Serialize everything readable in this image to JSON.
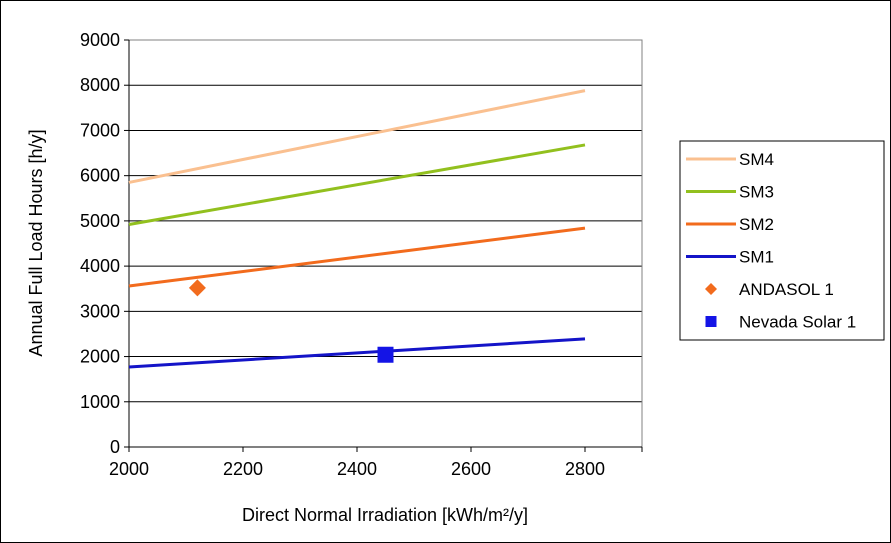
{
  "chart_data": {
    "type": "line",
    "title": "",
    "xlabel": "Direct Normal Irradiation [kWh/m²/y]",
    "ylabel": "Annual Full Load Hours [h/y]",
    "xlim": [
      2000,
      2900
    ],
    "ylim": [
      0,
      9000
    ],
    "x_ticks": [
      "2000",
      "2200",
      "2400",
      "2600",
      "2800"
    ],
    "y_ticks": [
      "0",
      "1000",
      "2000",
      "3000",
      "4000",
      "5000",
      "6000",
      "7000",
      "8000",
      "9000"
    ],
    "grid": "horizontal",
    "legend_position": "right",
    "series": [
      {
        "name": "SM4",
        "kind": "line",
        "color": "#FAC090",
        "x": [
          2000,
          2800
        ],
        "y": [
          5850,
          7880
        ]
      },
      {
        "name": "SM3",
        "kind": "line",
        "color": "#92C01E",
        "x": [
          2000,
          2800
        ],
        "y": [
          4920,
          6680
        ]
      },
      {
        "name": "SM2",
        "kind": "line",
        "color": "#F26B1D",
        "x": [
          2000,
          2800
        ],
        "y": [
          3560,
          4840
        ]
      },
      {
        "name": "SM1",
        "kind": "line",
        "color": "#1414C8",
        "x": [
          2000,
          2800
        ],
        "y": [
          1770,
          2390
        ]
      },
      {
        "name": "ANDASOL 1",
        "kind": "diamond",
        "color": "#F26B1D",
        "x": [
          2120
        ],
        "y": [
          3520
        ]
      },
      {
        "name": "Nevada Solar 1",
        "kind": "square",
        "color": "#1414E6",
        "x": [
          2450
        ],
        "y": [
          2040
        ]
      }
    ]
  }
}
